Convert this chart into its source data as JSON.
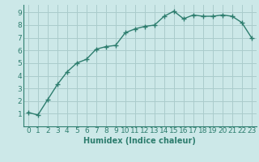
{
  "x": [
    0,
    1,
    2,
    3,
    4,
    5,
    6,
    7,
    8,
    9,
    10,
    11,
    12,
    13,
    14,
    15,
    16,
    17,
    18,
    19,
    20,
    21,
    22,
    23
  ],
  "y": [
    1.1,
    0.9,
    2.1,
    3.3,
    4.3,
    5.0,
    5.3,
    6.1,
    6.3,
    6.4,
    7.4,
    7.7,
    7.9,
    8.0,
    8.7,
    9.1,
    8.5,
    8.8,
    8.7,
    8.7,
    8.8,
    8.7,
    8.2,
    7.0
  ],
  "line_color": "#2d7d6e",
  "marker": "+",
  "marker_size": 4,
  "line_width": 1.0,
  "background_color": "#cce8e8",
  "grid_color": "#aacccc",
  "xlabel": "Humidex (Indice chaleur)",
  "xlabel_fontsize": 7,
  "tick_fontsize": 6.5,
  "xlim": [
    -0.5,
    23.5
  ],
  "ylim": [
    0,
    9.6
  ],
  "yticks": [
    1,
    2,
    3,
    4,
    5,
    6,
    7,
    8,
    9
  ],
  "xticks": [
    0,
    1,
    2,
    3,
    4,
    5,
    6,
    7,
    8,
    9,
    10,
    11,
    12,
    13,
    14,
    15,
    16,
    17,
    18,
    19,
    20,
    21,
    22,
    23
  ]
}
